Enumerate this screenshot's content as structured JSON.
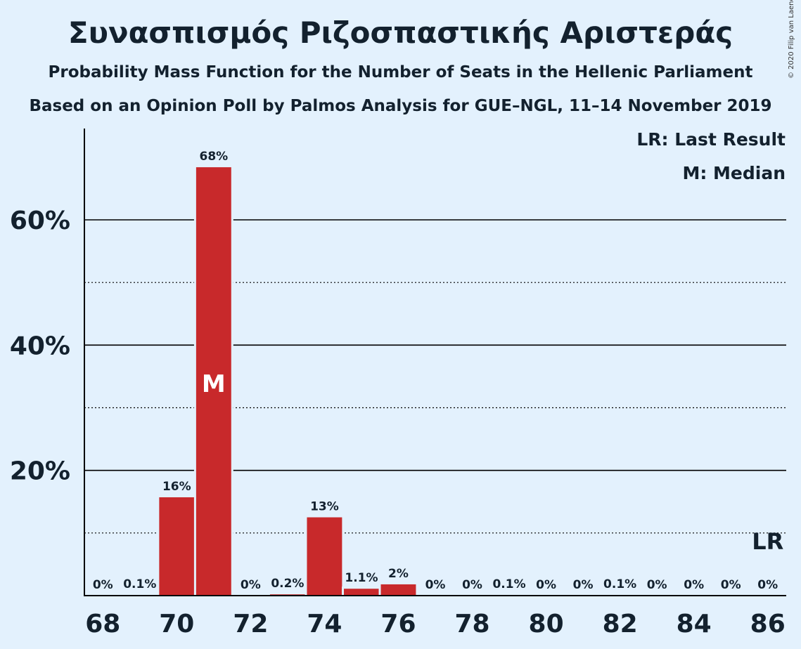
{
  "title": "Συνασπισμός Ριζοσπαστικής Αριστεράς",
  "subtitle1": "Probability Mass Function for the Number of Seats in the Hellenic Parliament",
  "subtitle2": "Based on an Opinion Poll by Palmos Analysis for GUE–NGL, 11–14 November 2019",
  "copyright": "© 2020 Filip van Laenen",
  "legend": {
    "last_result": "LR: Last Result",
    "median": "M: Median"
  },
  "colors": {
    "bar": "#c8292b",
    "background": "#e3f1fd",
    "text": "#13212e"
  },
  "chart_data": {
    "type": "bar",
    "categories": [
      68,
      69,
      70,
      71,
      72,
      73,
      74,
      75,
      76,
      77,
      78,
      79,
      80,
      81,
      82,
      83,
      84,
      85,
      86
    ],
    "values": [
      0,
      0.1,
      15.7,
      68.4,
      0,
      0.2,
      12.5,
      1.1,
      1.8,
      0,
      0,
      0.1,
      0,
      0,
      0.1,
      0,
      0,
      0,
      0
    ],
    "labels": [
      "0%",
      "0.1%",
      "16%",
      "68%",
      "0%",
      "0.2%",
      "13%",
      "1.1%",
      "2%",
      "0%",
      "0%",
      "0.1%",
      "0%",
      "0%",
      "0.1%",
      "0%",
      "0%",
      "0%",
      "0%"
    ],
    "x_tick_labels": [
      "68",
      "70",
      "72",
      "74",
      "76",
      "78",
      "80",
      "82",
      "84",
      "86"
    ],
    "y_ticks": [
      20,
      40,
      60
    ],
    "y_tick_labels": [
      "20%",
      "40%",
      "60%"
    ],
    "y_minor_ticks": [
      10,
      30,
      50
    ],
    "ylim": [
      0,
      75
    ],
    "median_seat": 71,
    "median_label": "M",
    "last_result_seat": 86,
    "last_result_label": "LR",
    "xlabel": "",
    "ylabel": ""
  }
}
